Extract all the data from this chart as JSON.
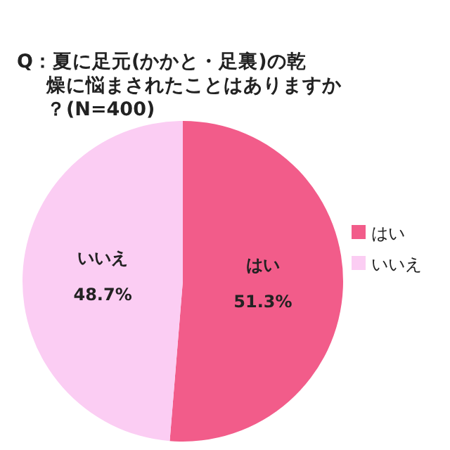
{
  "chart_data": {
    "type": "pie",
    "title": "Q：夏に足元(かかと・足裏)の乾燥に悩まされたことはありますか？(N=400)",
    "categories": [
      "はい",
      "いいえ"
    ],
    "values": [
      51.3,
      48.7
    ],
    "colors": [
      "#f25c8a",
      "#fbcdf3"
    ],
    "value_labels": [
      "51.3%",
      "48.7%"
    ],
    "legend": "right"
  }
}
